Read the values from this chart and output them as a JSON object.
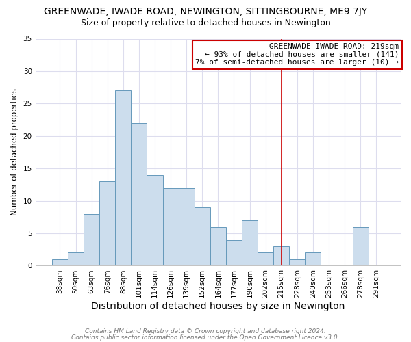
{
  "title": "GREENWADE, IWADE ROAD, NEWINGTON, SITTINGBOURNE, ME9 7JY",
  "subtitle": "Size of property relative to detached houses in Newington",
  "xlabel": "Distribution of detached houses by size in Newington",
  "ylabel": "Number of detached properties",
  "bar_labels": [
    "38sqm",
    "50sqm",
    "63sqm",
    "76sqm",
    "88sqm",
    "101sqm",
    "114sqm",
    "126sqm",
    "139sqm",
    "152sqm",
    "164sqm",
    "177sqm",
    "190sqm",
    "202sqm",
    "215sqm",
    "228sqm",
    "240sqm",
    "253sqm",
    "266sqm",
    "278sqm",
    "291sqm"
  ],
  "bar_values": [
    1,
    2,
    8,
    13,
    27,
    22,
    14,
    12,
    12,
    9,
    6,
    4,
    7,
    2,
    3,
    1,
    2,
    0,
    0,
    6,
    0
  ],
  "bar_color": "#ccdded",
  "bar_edge_color": "#6699bb",
  "vline_x_index": 14,
  "vline_color": "#cc0000",
  "annotation_title": "GREENWADE IWADE ROAD: 219sqm",
  "annotation_line1": "← 93% of detached houses are smaller (141)",
  "annotation_line2": "7% of semi-detached houses are larger (10) →",
  "annotation_box_facecolor": "#ffffff",
  "annotation_box_edgecolor": "#cc0000",
  "ylim": [
    0,
    35
  ],
  "yticks": [
    0,
    5,
    10,
    15,
    20,
    25,
    30,
    35
  ],
  "footnote1": "Contains HM Land Registry data © Crown copyright and database right 2024.",
  "footnote2": "Contains public sector information licensed under the Open Government Licence v3.0.",
  "plot_bg_color": "#ffffff",
  "fig_bg_color": "#ffffff",
  "grid_color": "#ddddee",
  "title_fontsize": 10,
  "subtitle_fontsize": 9,
  "xlabel_fontsize": 10,
  "ylabel_fontsize": 8.5,
  "tick_fontsize": 7.5,
  "annotation_fontsize": 8,
  "footnote_fontsize": 6.5
}
